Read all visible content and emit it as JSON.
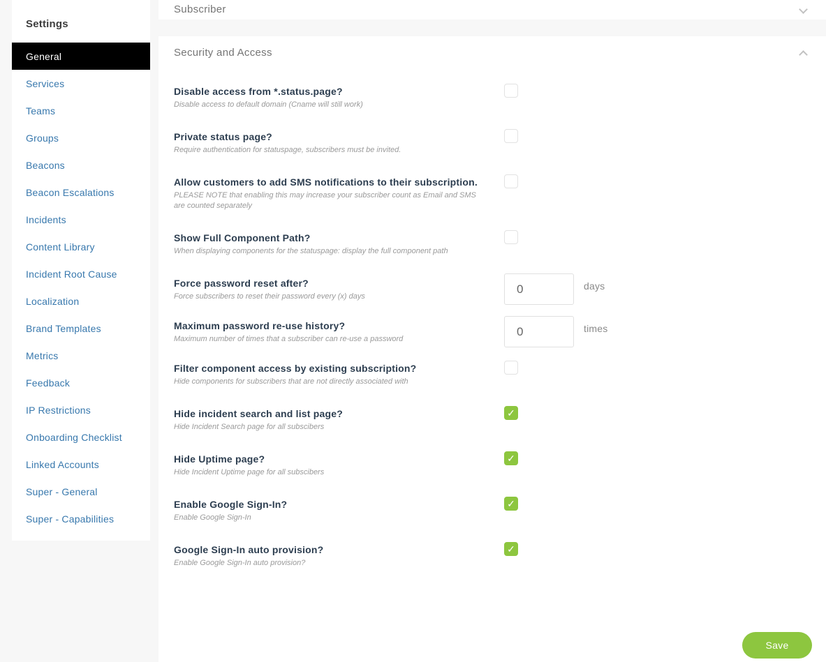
{
  "colors": {
    "accent_green": "#8dc63f",
    "link_blue": "#3878ad",
    "title_navy": "#2d3e50",
    "page_bg": "#f7f7f7",
    "active_item_bg": "#000000"
  },
  "sidebar": {
    "title": "Settings",
    "items": [
      {
        "label": "General",
        "active": true
      },
      {
        "label": "Services",
        "active": false
      },
      {
        "label": "Teams",
        "active": false
      },
      {
        "label": "Groups",
        "active": false
      },
      {
        "label": "Beacons",
        "active": false
      },
      {
        "label": "Beacon Escalations",
        "active": false
      },
      {
        "label": "Incidents",
        "active": false
      },
      {
        "label": "Content Library",
        "active": false
      },
      {
        "label": "Incident Root Cause",
        "active": false
      },
      {
        "label": "Localization",
        "active": false
      },
      {
        "label": "Brand Templates",
        "active": false
      },
      {
        "label": "Metrics",
        "active": false
      },
      {
        "label": "Feedback",
        "active": false
      },
      {
        "label": "IP Restrictions",
        "active": false
      },
      {
        "label": "Onboarding Checklist",
        "active": false
      },
      {
        "label": "Linked Accounts",
        "active": false
      },
      {
        "label": "Super - General",
        "active": false
      },
      {
        "label": "Super - Capabilities",
        "active": false
      }
    ]
  },
  "subscriber_section": {
    "title": "Subscriber",
    "chevron_icon": "chevron-down-icon",
    "collapsed": true
  },
  "security_section": {
    "title": "Security and Access",
    "chevron_icon": "chevron-up-icon",
    "collapsed": false,
    "rows": [
      {
        "type": "checkbox",
        "title": "Disable access from *.status.page?",
        "subtitle": "Disable access to default domain (Cname will still work)",
        "checked": false
      },
      {
        "type": "checkbox",
        "title": "Private status page?",
        "subtitle": "Require authentication for statuspage, subscribers must be invited.",
        "checked": false
      },
      {
        "type": "checkbox",
        "title": "Allow customers to add SMS notifications to their subscription.",
        "subtitle": "PLEASE NOTE that enabling this may increase your subscriber count as Email and SMS are counted separately",
        "checked": false
      },
      {
        "type": "checkbox",
        "title": "Show Full Component Path?",
        "subtitle": "When displaying components for the statuspage: display the full component path",
        "checked": false
      },
      {
        "type": "input",
        "title": "Force password reset after?",
        "subtitle": "Force subscribers to reset their password every (x) days",
        "value": "0",
        "unit": "days"
      },
      {
        "type": "input",
        "title": "Maximum password re-use history?",
        "subtitle": "Maximum number of times that a subscriber can re-use a password",
        "value": "0",
        "unit": "times"
      },
      {
        "type": "checkbox",
        "title": "Filter component access by existing subscription?",
        "subtitle": "Hide components for subscribers that are not directly associated with",
        "checked": false
      },
      {
        "type": "checkbox",
        "title": "Hide incident search and list page?",
        "subtitle": "Hide Incident Search page for all subscibers",
        "checked": true
      },
      {
        "type": "checkbox",
        "title": "Hide Uptime page?",
        "subtitle": "Hide Incident Uptime page for all subscibers",
        "checked": true
      },
      {
        "type": "checkbox",
        "title": "Enable Google Sign-In?",
        "subtitle": "Enable Google Sign-In",
        "checked": true
      },
      {
        "type": "checkbox",
        "title": "Google Sign-In auto provision?",
        "subtitle": "Enable Google Sign-In auto provision?",
        "checked": true
      }
    ],
    "save_label": "Save",
    "check_glyph": "✓"
  }
}
